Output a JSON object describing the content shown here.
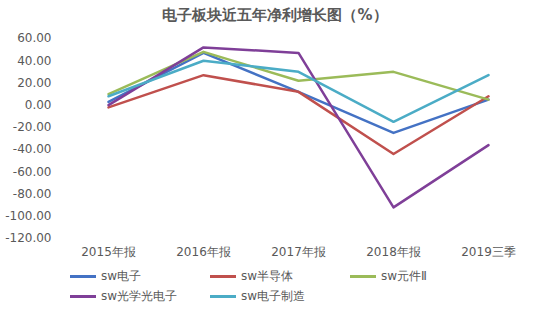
{
  "chart_data": {
    "type": "line",
    "title": "电子板块近五年净利增长图（%）",
    "categories": [
      "2015年报",
      "2016年报",
      "2017年报",
      "2018年报",
      "2019三季"
    ],
    "series": [
      {
        "name": "sw电子",
        "color": "#4472c4",
        "values": [
          3,
          47,
          12,
          -25,
          5
        ]
      },
      {
        "name": "sw半导体",
        "color": "#c0504d",
        "values": [
          -2,
          27,
          12,
          -44,
          8
        ]
      },
      {
        "name": "sw元件Ⅱ",
        "color": "#9bbb59",
        "values": [
          10,
          48,
          22,
          30,
          5
        ]
      },
      {
        "name": "sw光学光电子",
        "color": "#7f3f98",
        "values": [
          0,
          52,
          47,
          -92,
          -36
        ]
      },
      {
        "name": "sw电子制造",
        "color": "#4bacc6",
        "values": [
          8,
          40,
          30,
          -15,
          27
        ]
      }
    ],
    "ylim": [
      -120,
      60
    ],
    "yticks": [
      {
        "value": 60,
        "label": "60.00"
      },
      {
        "value": 40,
        "label": "40.00"
      },
      {
        "value": 20,
        "label": "20.00"
      },
      {
        "value": 0,
        "label": "0.00"
      },
      {
        "value": -20,
        "label": "-20.00"
      },
      {
        "value": -40,
        "label": "-40.00"
      },
      {
        "value": -60,
        "label": "-60.00"
      },
      {
        "value": -80,
        "label": "-80.00"
      },
      {
        "value": -100,
        "label": "-100.00"
      },
      {
        "value": -120,
        "label": "-120.00"
      }
    ],
    "grid": false,
    "legend": "bottom"
  }
}
